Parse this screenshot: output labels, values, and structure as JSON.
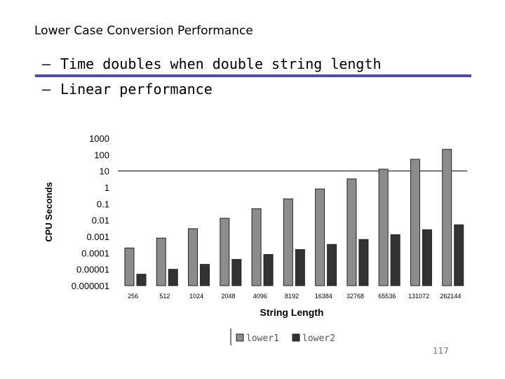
{
  "slide": {
    "title": "Lower Case Conversion Performance",
    "bullets": [
      {
        "dash": "–",
        "text": "Time doubles when double string length"
      },
      {
        "dash": "–",
        "text": "Linear performance"
      }
    ],
    "page_number": "117"
  },
  "colors": {
    "rule": "#4a4fb8",
    "lower1": "#8c8c8c",
    "lower2": "#333333"
  },
  "chart_data": {
    "type": "bar",
    "ylabel": "CPU Seconds",
    "xlabel": "String Length",
    "y_scale": "log",
    "ylim": [
      1e-06,
      1000
    ],
    "y_ticks": [
      "1000",
      "100",
      "10",
      "1",
      "0.1",
      "0.01",
      "0.001",
      "0.0001",
      "0.00001",
      "0.000001"
    ],
    "categories": [
      "256",
      "512",
      "1024",
      "2048",
      "4096",
      "8192",
      "16384",
      "32768",
      "65536",
      "131072",
      "262144"
    ],
    "series": [
      {
        "name": "lower1",
        "values": [
          0.0002,
          0.0008,
          0.003,
          0.013,
          0.05,
          0.2,
          0.8,
          3.3,
          13,
          52,
          210
        ]
      },
      {
        "name": "lower2",
        "values": [
          5e-06,
          1e-05,
          2e-05,
          4e-05,
          8e-05,
          0.00016,
          0.00033,
          0.00066,
          0.0013,
          0.0026,
          0.0052
        ]
      }
    ],
    "gridline_values": [
      10
    ],
    "legend_position": "bottom"
  }
}
